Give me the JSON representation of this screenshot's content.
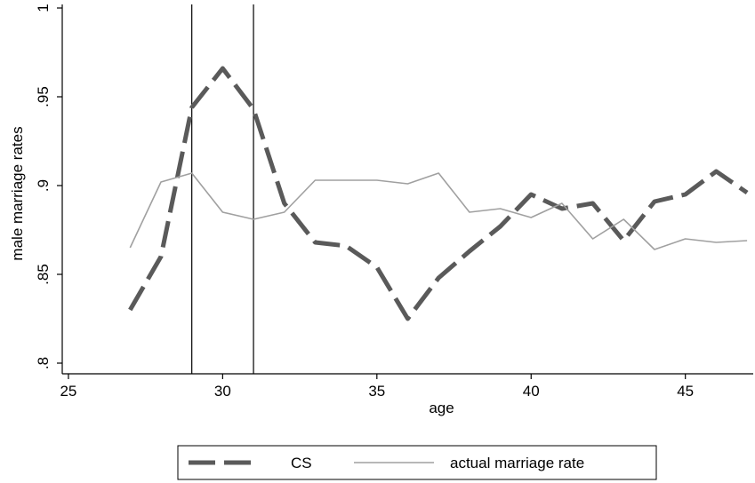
{
  "chart_data": {
    "type": "line",
    "xlabel": "age",
    "ylabel": "male marriage rates",
    "xlim": [
      24.8,
      47.2
    ],
    "ylim": [
      0.794,
      1.002
    ],
    "xticks": [
      25,
      30,
      35,
      40,
      45
    ],
    "xtick_labels": [
      "25",
      "30",
      "35",
      "40",
      "45"
    ],
    "yticks": [
      0.8,
      0.85,
      0.9,
      0.95,
      1
    ],
    "ytick_labels": [
      ".8",
      ".85",
      ".9",
      ".95",
      "1"
    ],
    "vertical_lines": [
      29,
      31
    ],
    "grid": false,
    "legend_position": "bottom",
    "series": [
      {
        "name": "CS",
        "style": "dashed",
        "color": "#5a5a5a",
        "x": [
          27,
          28,
          29,
          30,
          31,
          32,
          33,
          34,
          35,
          36,
          37,
          38,
          39,
          40,
          41,
          42,
          43,
          44,
          45,
          46,
          47
        ],
        "y": [
          0.83,
          0.86,
          0.944,
          0.966,
          0.943,
          0.89,
          0.868,
          0.866,
          0.854,
          0.825,
          0.848,
          0.863,
          0.877,
          0.895,
          0.887,
          0.89,
          0.869,
          0.891,
          0.895,
          0.908,
          0.896
        ]
      },
      {
        "name": "actual marriage rate",
        "style": "solid",
        "color": "#a0a0a0",
        "x": [
          27,
          28,
          29,
          30,
          31,
          32,
          33,
          34,
          35,
          36,
          37,
          38,
          39,
          40,
          41,
          42,
          43,
          44,
          45,
          46,
          47
        ],
        "y": [
          0.865,
          0.902,
          0.907,
          0.885,
          0.881,
          0.885,
          0.903,
          0.903,
          0.903,
          0.901,
          0.907,
          0.885,
          0.887,
          0.882,
          0.89,
          0.87,
          0.881,
          0.864,
          0.87,
          0.868,
          0.869
        ]
      }
    ]
  }
}
